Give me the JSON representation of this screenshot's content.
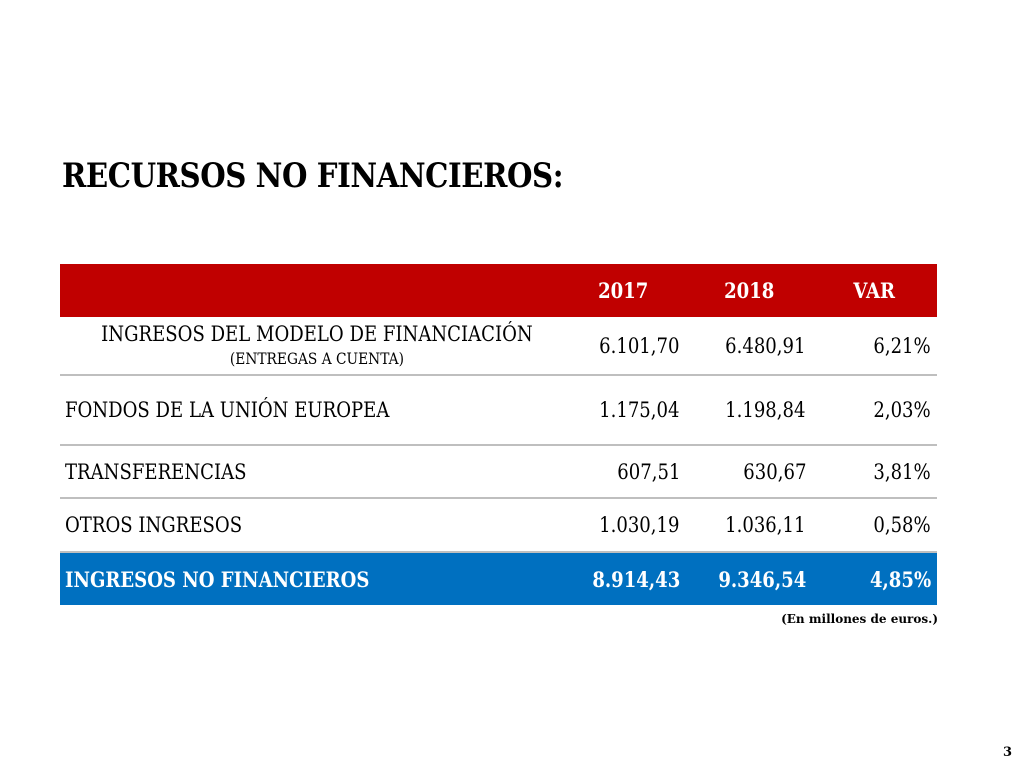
{
  "title": "RECURSOS NO FINANCIEROS:",
  "table": {
    "headers": [
      "",
      "2017",
      "2018",
      "VAR"
    ],
    "rows": [
      {
        "label": "INGRESOS DEL MODELO DE FINANCIACIÓN",
        "sublabel": "(ENTREGAS A CUENTA)",
        "v2017": "6.101,70",
        "v2018": "6.480,91",
        "var": "6,21%"
      },
      {
        "label": "FONDOS DE LA UNIÓN EUROPEA",
        "v2017": "1.175,04",
        "v2018": "1.198,84",
        "var": "2,03%"
      },
      {
        "label": "TRANSFERENCIAS",
        "v2017": "607,51",
        "v2018": "630,67",
        "var": "3,81%"
      },
      {
        "label": "OTROS INGRESOS",
        "v2017": "1.030,19",
        "v2018": "1.036,11",
        "var": "0,58%"
      }
    ],
    "total": {
      "label": "INGRESOS NO FINANCIEROS",
      "v2017": "8.914,43",
      "v2018": "9.346,54",
      "var": "4,85%"
    }
  },
  "footnote": "(En millones de euros.)",
  "page_number": "3",
  "colors": {
    "header_bg": "#c00000",
    "total_bg": "#0070c0"
  }
}
